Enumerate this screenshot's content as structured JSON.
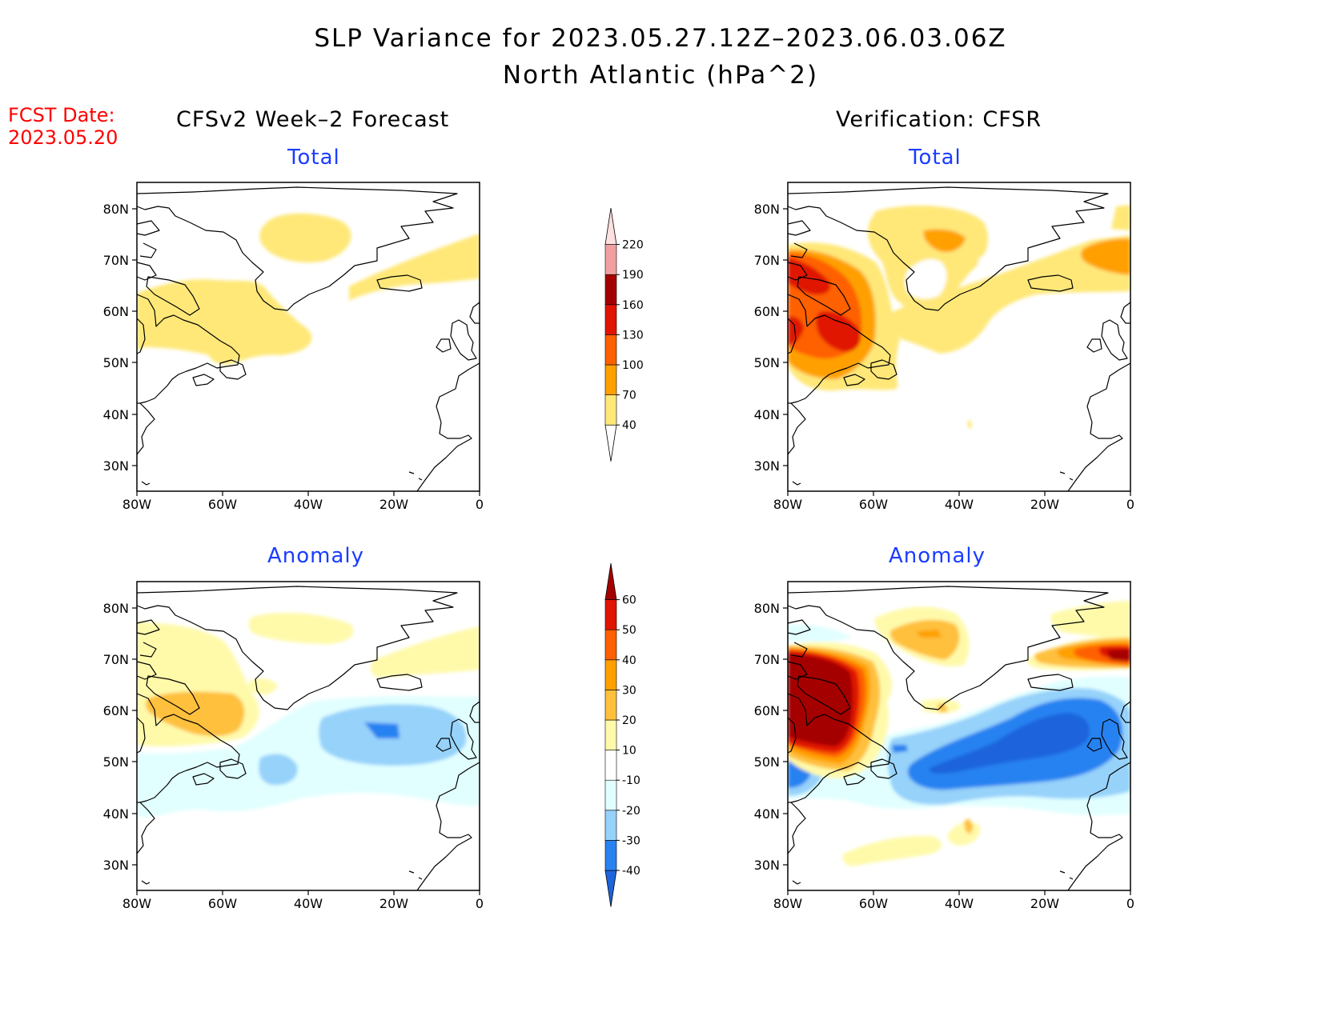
{
  "title": {
    "line1": "SLP Variance for 2023.05.27.12Z–2023.06.03.06Z",
    "line2": "North Atlantic (hPa^2)"
  },
  "fcst_date": {
    "label": "FCST Date:",
    "value": "2023.05.20"
  },
  "columns": {
    "left": "CFSv2 Week–2 Forecast",
    "right": "Verification: CFSR"
  },
  "panel_titles": {
    "total": "Total",
    "anomaly": "Anomaly"
  },
  "lat_labels": [
    "80N",
    "70N",
    "60N",
    "50N",
    "40N",
    "30N"
  ],
  "lon_labels": [
    "80W",
    "60W",
    "40W",
    "20W",
    "0"
  ],
  "colorbar_total": {
    "levels": [
      "40",
      "70",
      "100",
      "130",
      "160",
      "190",
      "220"
    ],
    "colors": [
      "#ffffff",
      "#ffe878",
      "#ffa000",
      "#ff6000",
      "#e01400",
      "#a50000",
      "#f0a0a0",
      "#ffe0e0"
    ]
  },
  "colorbar_anomaly": {
    "levels": [
      "-40",
      "-30",
      "-20",
      "-10",
      "10",
      "20",
      "30",
      "40",
      "50",
      "60"
    ],
    "colors": [
      "#1e64dc",
      "#2882f0",
      "#96d2fa",
      "#e1ffff",
      "#ffffff",
      "#fffaaa",
      "#ffc03c",
      "#ffa000",
      "#ff6000",
      "#e01400",
      "#a50000"
    ]
  },
  "palette": {
    "yellow": "#ffe878",
    "orange": "#ffa000",
    "dorange": "#ff6000",
    "red": "#e01400",
    "dred": "#a50000",
    "ayellow": "#fffaaa",
    "aorange1": "#ffc03c",
    "lcyan": "#e1ffff",
    "lblue": "#96d2fa",
    "mblue": "#2882f0",
    "dblue": "#1e64dc"
  }
}
